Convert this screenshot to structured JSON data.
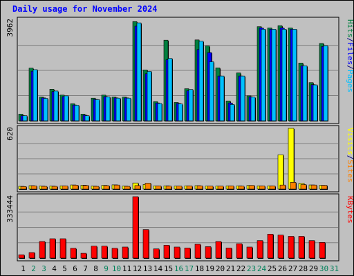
{
  "chart_data": {
    "type": "bar",
    "title": "Daily usage for November 2024",
    "categories": [
      "1",
      "2",
      "3",
      "4",
      "5",
      "6",
      "7",
      "8",
      "9",
      "10",
      "11",
      "12",
      "13",
      "14",
      "15",
      "16",
      "17",
      "18",
      "19",
      "20",
      "21",
      "22",
      "23",
      "24",
      "25",
      "26",
      "27",
      "28",
      "29",
      "30",
      "31"
    ],
    "weekend_days": [
      "2",
      "3",
      "9",
      "10",
      "16",
      "17",
      "23",
      "24",
      "30",
      "31"
    ],
    "panels": [
      {
        "id": "hits-files-pages",
        "max_label": "3962",
        "ymax": 3962,
        "legend": [
          {
            "label": "Pages",
            "color": "#00c0ff"
          },
          {
            "label": "/",
            "color": "#000080"
          },
          {
            "label": "Files",
            "color": "#0000ff"
          },
          {
            "label": "/",
            "color": "#000080"
          },
          {
            "label": "Hits",
            "color": "#008040"
          }
        ],
        "series": [
          {
            "name": "Hits",
            "color": "#008040",
            "values": [
              260,
              2070,
              930,
              1240,
              1010,
              670,
              260,
              890,
              1010,
              930,
              930,
              3900,
              2000,
              750,
              3170,
              720,
              1260,
              3180,
              2940,
              2080,
              780,
              1880,
              980,
              3700,
              3650,
              3740,
              3650,
              2270,
              1500,
              3040,
              0
            ]
          },
          {
            "name": "Files",
            "color": "#0000ff",
            "values": [
              200,
              1950,
              900,
              1150,
              950,
              620,
              220,
              840,
              950,
              900,
              900,
              3720,
              1850,
              700,
              2400,
              680,
              1180,
              2800,
              2680,
              1760,
              700,
              1760,
              940,
              3650,
              3600,
              3650,
              3600,
              2160,
              1420,
              2920,
              0
            ]
          },
          {
            "name": "Pages",
            "color": "#00c0ff",
            "values": [
              200,
              2010,
              880,
              1170,
              980,
              610,
              200,
              830,
              940,
              890,
              890,
              3850,
              1940,
              680,
              2450,
              660,
              1230,
              3130,
              2320,
              1760,
              640,
              1760,
              930,
              3600,
              3600,
              3600,
              3600,
              2160,
              1410,
              2950,
              0
            ]
          }
        ]
      },
      {
        "id": "visits-sites",
        "max_label": "620",
        "ymax": 620,
        "legend": [
          {
            "label": "Sites",
            "color": "#ff8000"
          },
          {
            "label": "/",
            "color": "#000080"
          },
          {
            "label": "Visits",
            "color": "#ffff00"
          }
        ],
        "series": [
          {
            "name": "Visits",
            "color": "#ffff00",
            "values": [
              28,
              35,
              30,
              30,
              33,
              42,
              40,
              30,
              38,
              43,
              30,
              62,
              47,
              32,
              33,
              30,
              33,
              35,
              30,
              30,
              32,
              32,
              37,
              33,
              33,
              350,
              620,
              58,
              42,
              38,
              0
            ]
          },
          {
            "name": "Sites",
            "color": "#ff8000",
            "values": [
              26,
              33,
              28,
              28,
              32,
              40,
              37,
              28,
              35,
              41,
              28,
              36,
              60,
              32,
              30,
              30,
              32,
              33,
              30,
              30,
              32,
              30,
              37,
              32,
              32,
              41,
              68,
              46,
              41,
              38,
              0
            ]
          }
        ]
      },
      {
        "id": "kbytes",
        "max_label": "333444",
        "ymax": 333444,
        "legend": [
          {
            "label": "KBytes",
            "color": "#ff0000"
          }
        ],
        "series": [
          {
            "name": "KBytes",
            "color": "#ff0000",
            "values": [
              18000,
              30000,
              90000,
              105000,
              105000,
              53000,
              26000,
              65000,
              65000,
              53000,
              60000,
              333444,
              155000,
              50000,
              70000,
              60000,
              55000,
              75000,
              62000,
              90000,
              55000,
              78000,
              60000,
              95000,
              130000,
              125000,
              118000,
              118000,
              95000,
              85000,
              0
            ]
          }
        ]
      }
    ]
  }
}
